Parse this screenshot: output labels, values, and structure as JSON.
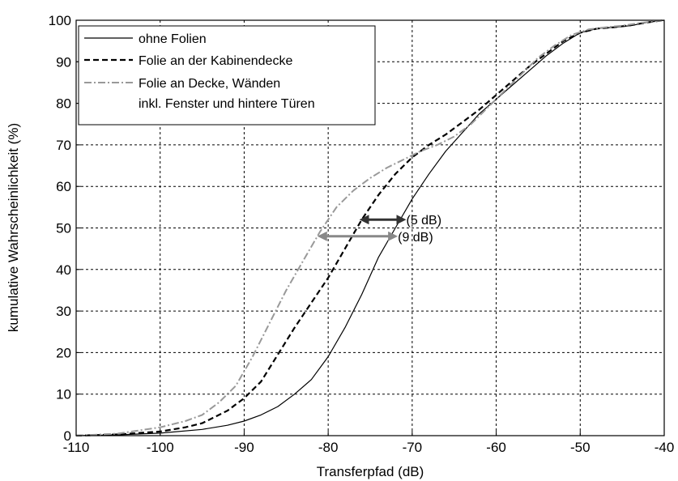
{
  "chart_data": {
    "type": "line",
    "xlabel": "Transferpfad (dB)",
    "ylabel": "kumulative Wahrscheinlichkeit (%)",
    "xlim": [
      -110,
      -40
    ],
    "ylim": [
      0,
      100
    ],
    "xticks": [
      "-110",
      "-100",
      "-90",
      "-80",
      "-70",
      "-60",
      "-50",
      "-40"
    ],
    "yticks": [
      "0",
      "10",
      "20",
      "30",
      "40",
      "50",
      "60",
      "70",
      "80",
      "90",
      "100"
    ],
    "grid": true,
    "legend_position": "top-left",
    "series": [
      {
        "name": "ohne Folien",
        "style": "solid",
        "color": "#000000",
        "x": [
          -110,
          -105,
          -100,
          -95,
          -92,
          -90,
          -88,
          -86,
          -84,
          -82,
          -80,
          -78,
          -76,
          -74,
          -72,
          -70,
          -68,
          -66,
          -64,
          -62,
          -60,
          -58,
          -56,
          -54,
          -52,
          -50,
          -48,
          -46,
          -44,
          -42,
          -40
        ],
        "y": [
          0,
          0.2,
          0.6,
          1.5,
          2.5,
          3.5,
          5,
          7,
          10,
          13.5,
          19,
          26,
          34,
          43,
          50,
          57,
          63,
          68.5,
          73,
          77.5,
          81,
          84.5,
          88,
          91.5,
          94.5,
          97,
          98,
          98.3,
          98.7,
          99.5,
          100
        ]
      },
      {
        "name": "Folie an der Kabinendecke",
        "style": "dashed",
        "color": "#000000",
        "x": [
          -110,
          -105,
          -100,
          -97,
          -95,
          -92,
          -90,
          -88,
          -86,
          -84,
          -82,
          -80,
          -78,
          -76,
          -74,
          -72,
          -70,
          -68,
          -66,
          -64,
          -62,
          -60,
          -58,
          -56,
          -54,
          -52,
          -50,
          -48,
          -46,
          -44,
          -42,
          -40
        ],
        "y": [
          0,
          0.3,
          1,
          2,
          3,
          6,
          9,
          13,
          19.5,
          26,
          32,
          38,
          45,
          52,
          58,
          63,
          67,
          70,
          72.5,
          75.5,
          78.5,
          82,
          85.5,
          89,
          92,
          95,
          97,
          98,
          98.3,
          98.8,
          99.5,
          100
        ]
      },
      {
        "name": "Folie an Decke, Wänden inkl. Fenster und hintere Türen",
        "style": "dashdot",
        "color": "#999999",
        "x": [
          -110,
          -105,
          -100,
          -97,
          -95,
          -93,
          -91,
          -89,
          -87,
          -85,
          -83,
          -81,
          -79,
          -77,
          -75,
          -73,
          -71,
          -69,
          -67,
          -65,
          -63,
          -61,
          -59,
          -57,
          -55,
          -53,
          -51,
          -49,
          -47,
          -45,
          -43,
          -41,
          -40
        ],
        "y": [
          0,
          0.5,
          2,
          3.5,
          5,
          8,
          12,
          19,
          27,
          35,
          42,
          49,
          55,
          59,
          62,
          64.5,
          66.5,
          68.5,
          70,
          72,
          75,
          79,
          83,
          87,
          91,
          94,
          96.5,
          97.8,
          98.3,
          98.7,
          99.3,
          99.8,
          100
        ]
      }
    ],
    "annotations": [
      {
        "label": "(5 dB)",
        "x_from": -76,
        "x_to": -71,
        "y": 52,
        "color": "#333333"
      },
      {
        "label": "(9 dB)",
        "x_from": -81,
        "x_to": -72,
        "y": 48,
        "color": "#888888"
      }
    ]
  }
}
